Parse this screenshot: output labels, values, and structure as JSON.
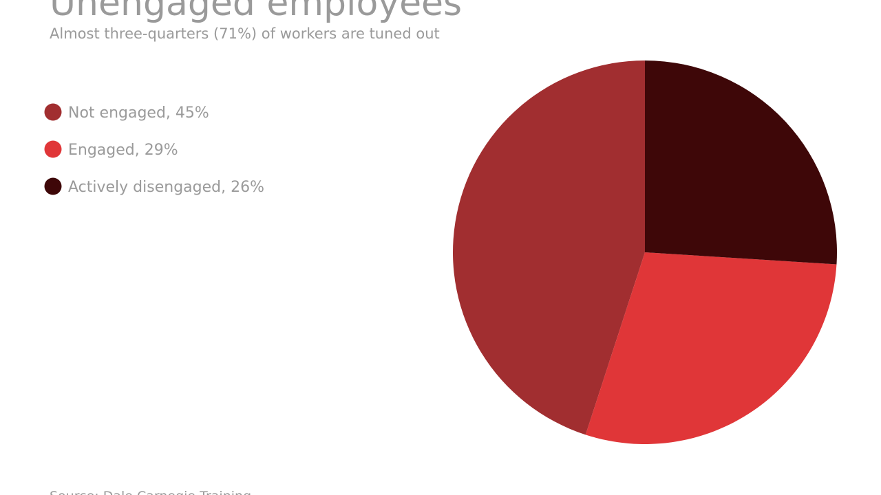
{
  "chart_data": {
    "type": "pie",
    "title": "Unengaged employees",
    "subtitle": "Almost three-quarters (71%) of workers are tuned out",
    "source": "Source: Dale Carnegie Training",
    "categories": [
      "Not engaged, 45%",
      "Engaged, 29%",
      "Actively disengaged, 26%"
    ],
    "values": [
      45,
      29,
      26
    ],
    "colors": [
      "#a12e30",
      "#e03638",
      "#3e0708"
    ],
    "legend": "top-left"
  }
}
